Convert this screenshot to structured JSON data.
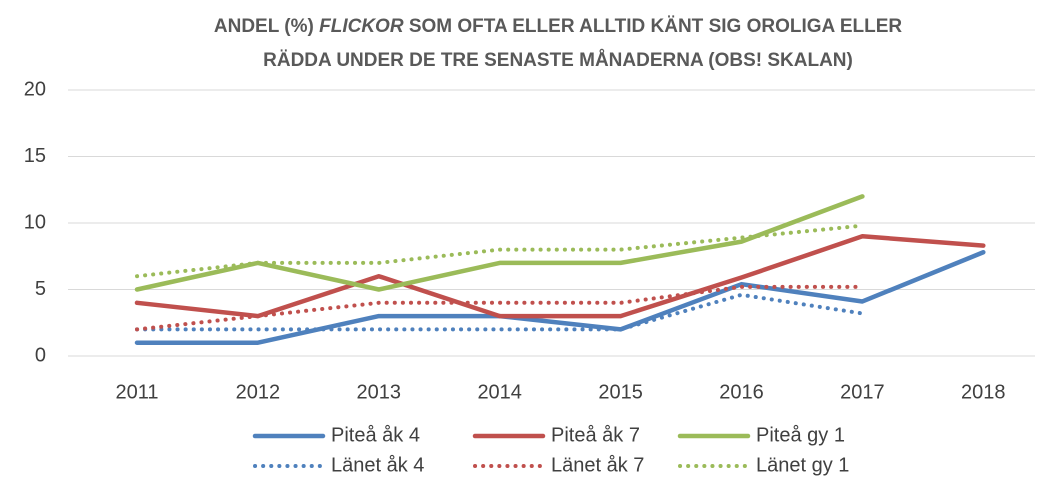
{
  "chart_data": {
    "type": "line",
    "title": [
      "ANDEL (%)",
      "FLICKOR",
      "SOM OFTA ELLER ALLTID KÄNT SIG OROLIGA ELLER",
      "RÄDDA UNDER DE TRE SENASTE MÅNADERNA (OBS! SKALAN)"
    ],
    "categories": [
      "2011",
      "2012",
      "2013",
      "2014",
      "2015",
      "2016",
      "2017",
      "2018"
    ],
    "series": [
      {
        "name": "Piteå åk 4",
        "color": "#4f81bd",
        "dash": "solid",
        "values": [
          1,
          1,
          3,
          3,
          2,
          5.4,
          4.1,
          7.8
        ]
      },
      {
        "name": "Piteå åk 7",
        "color": "#c0504d",
        "dash": "solid",
        "values": [
          4,
          3,
          6,
          3,
          3,
          5.9,
          9,
          8.3
        ]
      },
      {
        "name": "Piteå gy 1",
        "color": "#9bbb59",
        "dash": "solid",
        "values": [
          5,
          7,
          5,
          7,
          7,
          8.6,
          12,
          null
        ]
      },
      {
        "name": "Länet åk 4",
        "color": "#4f81bd",
        "dash": "dotted",
        "values": [
          2,
          2,
          2,
          2,
          2,
          4.6,
          3.2,
          null
        ]
      },
      {
        "name": "Länet åk 7",
        "color": "#c0504d",
        "dash": "dotted",
        "values": [
          2,
          3,
          4,
          4,
          4,
          5.2,
          5.2,
          null
        ]
      },
      {
        "name": "Länet gy 1",
        "color": "#9bbb59",
        "dash": "dotted",
        "values": [
          6,
          7,
          7,
          8,
          8,
          8.9,
          9.8,
          null
        ]
      }
    ],
    "ylim": [
      0,
      20
    ],
    "yticks": [
      0,
      5,
      10,
      15,
      20
    ],
    "grid": true,
    "legend": "bottom"
  }
}
